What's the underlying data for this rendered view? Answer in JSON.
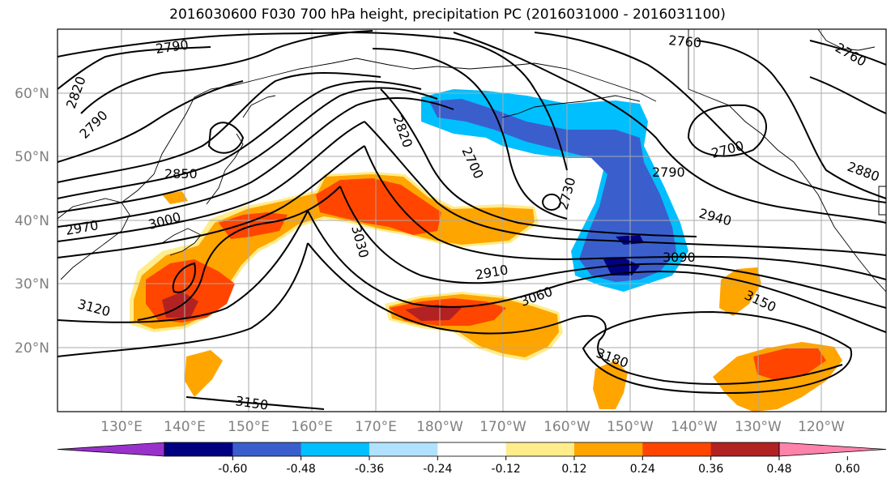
{
  "title": "2016030600 F030 700 hPa height, precipitation PC (2016031000 - 2016031100)",
  "lat_labels": [
    "60°N",
    "50°N",
    "40°N",
    "30°N",
    "20°N"
  ],
  "lon_labels": [
    "130°E",
    "140°E",
    "150°E",
    "160°E",
    "170°E",
    "180°W",
    "170°W",
    "160°W",
    "150°W",
    "140°W",
    "130°W",
    "120°W"
  ],
  "contour_labels": [
    "2790",
    "2820",
    "2790",
    "2850",
    "2970",
    "3000",
    "3120",
    "3150",
    "2820",
    "2700",
    "2730",
    "3030",
    "2910",
    "3060",
    "2760",
    "2760",
    "2700",
    "2790",
    "2880",
    "2940",
    "3090",
    "3150",
    "3180"
  ],
  "colorbar": {
    "ticks": [
      "-0.60",
      "-0.48",
      "-0.36",
      "-0.24",
      "-0.12",
      "0.12",
      "0.24",
      "0.36",
      "0.48",
      "0.60"
    ],
    "colors": [
      "#9932cc",
      "#000080",
      "#3a5fcd",
      "#00bfff",
      "#b0e2ff",
      "#ffffff",
      "#ffec8b",
      "#ffa500",
      "#ff4500",
      "#b22222",
      "#ff82ab"
    ]
  }
}
